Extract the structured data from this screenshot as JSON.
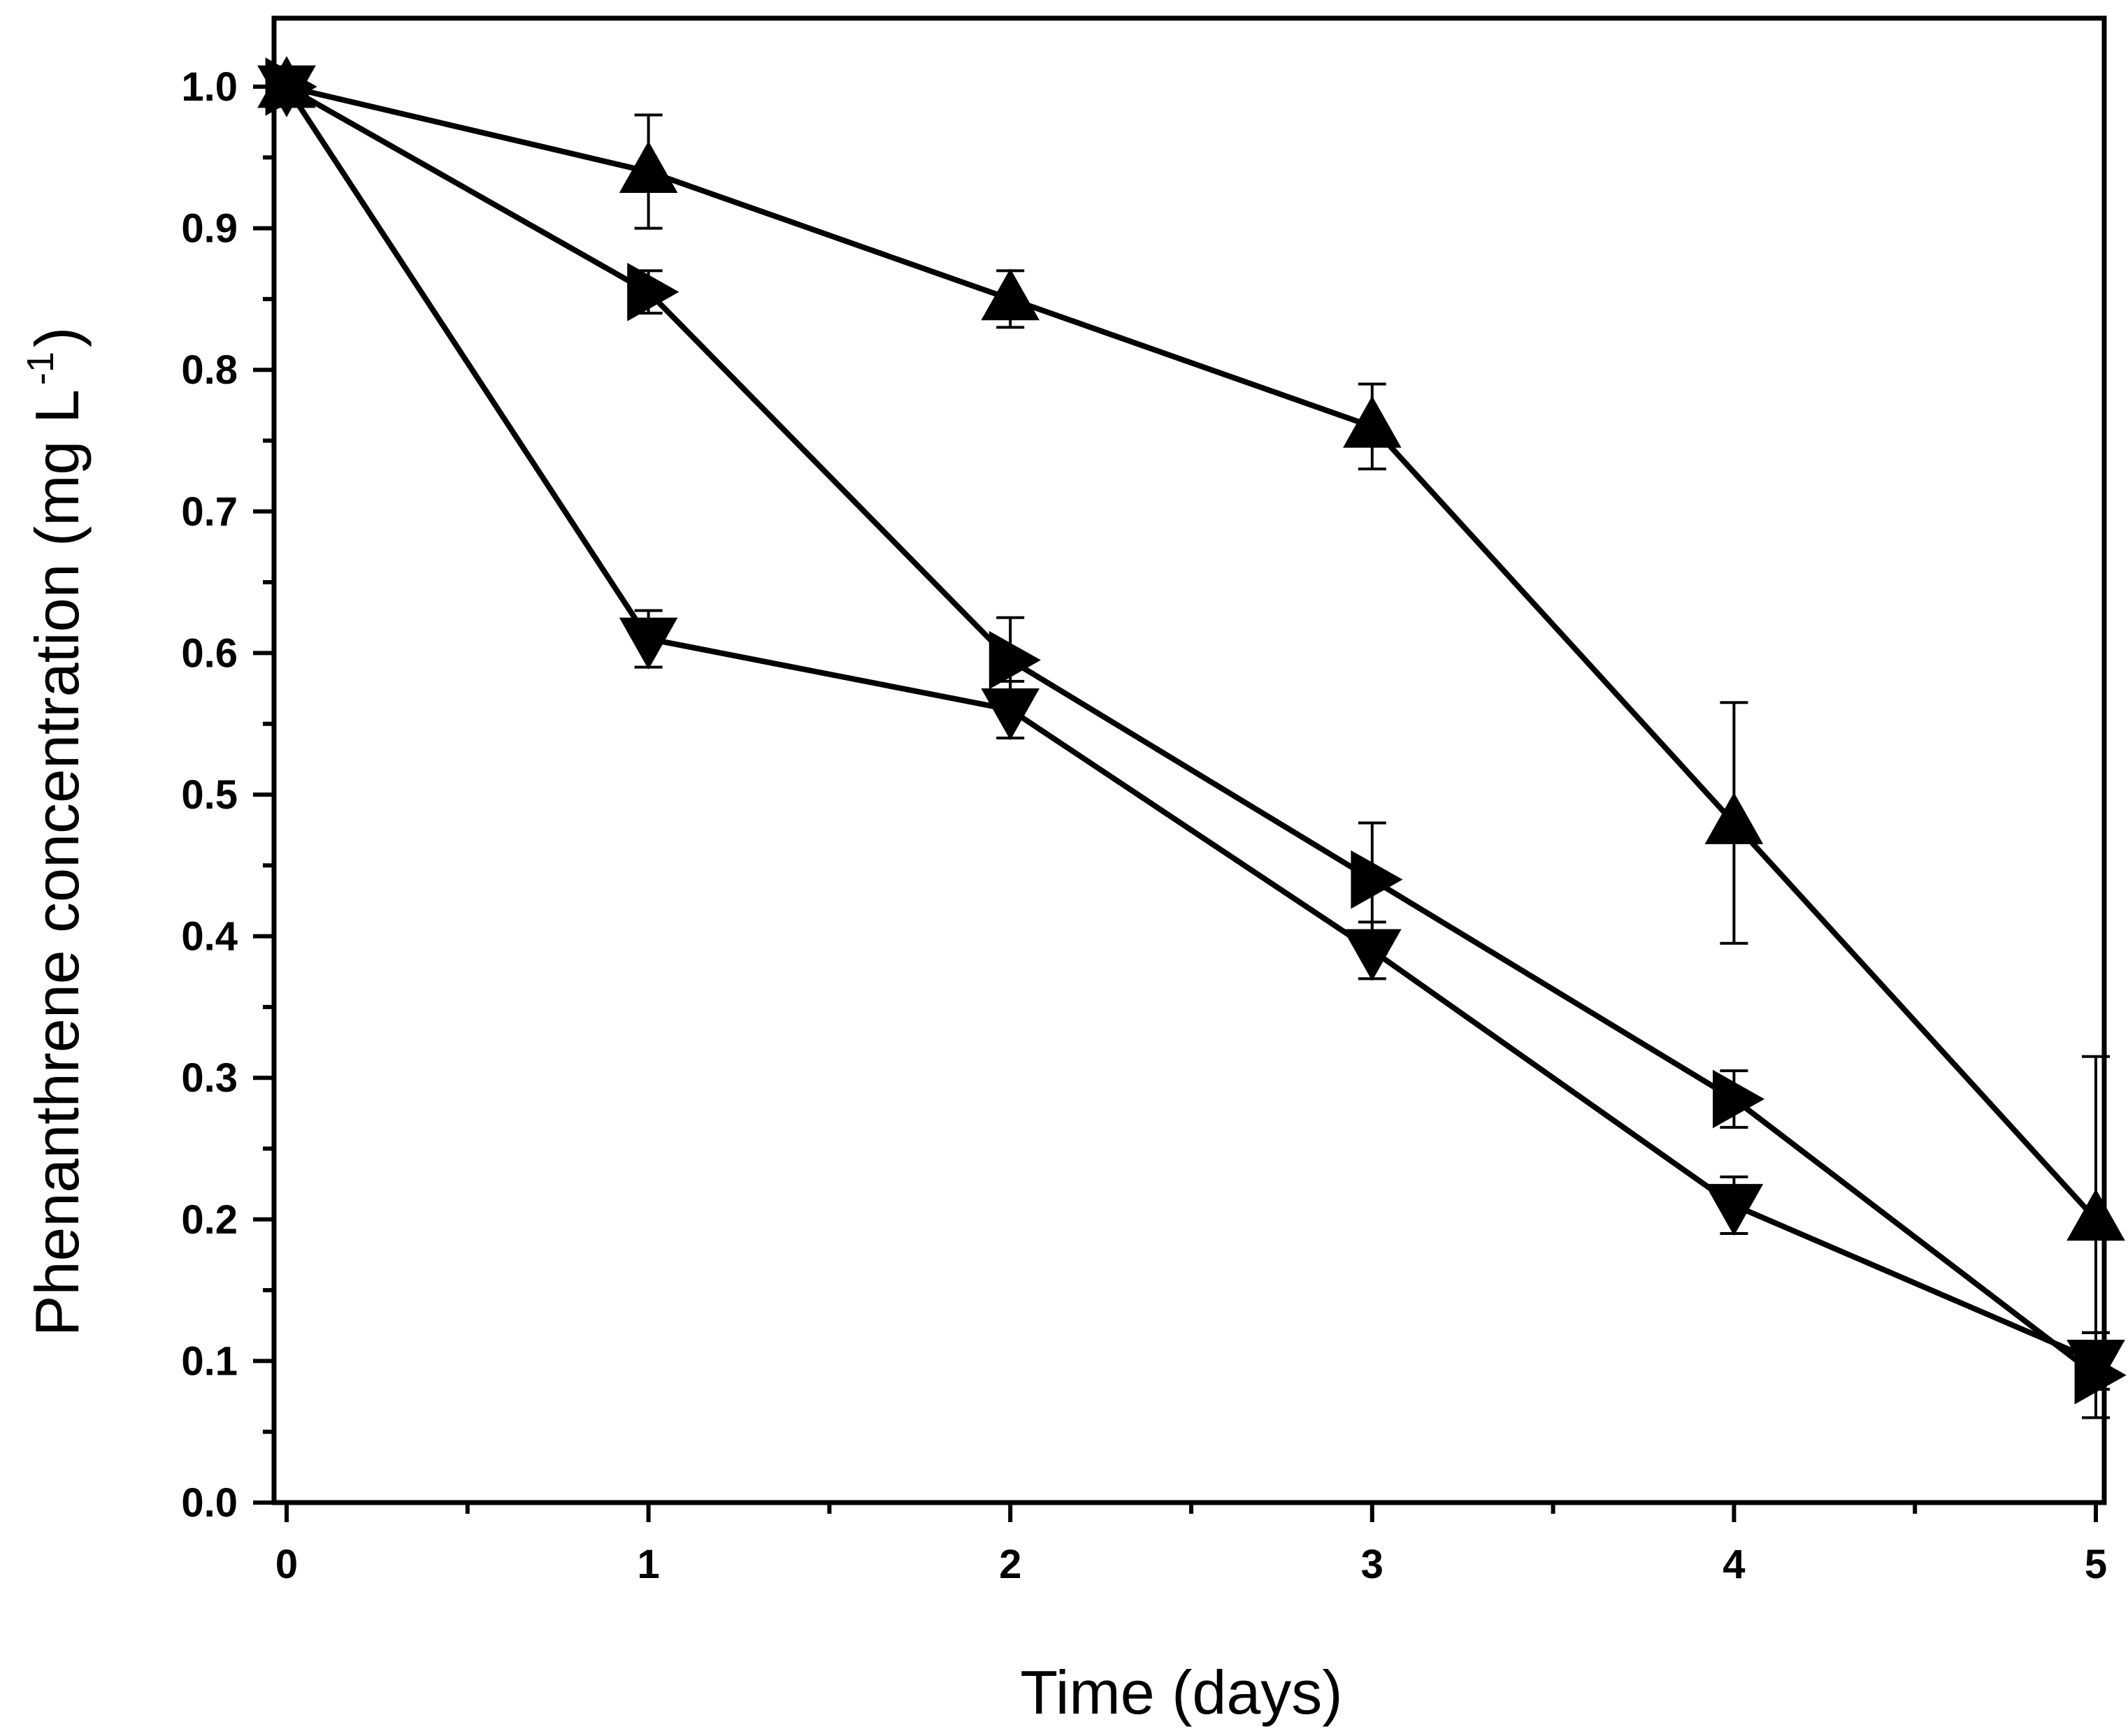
{
  "chart_data": {
    "type": "line",
    "title": "",
    "xlabel": "Time (days)",
    "ylabel": "Phenanthrene concentration (mg L",
    "ylabel_superscript": "-1",
    "ylabel_suffix": ")",
    "xlim": [
      0,
      5
    ],
    "ylim": [
      0,
      1.0
    ],
    "x_ticks": [
      0,
      1,
      2,
      3,
      4,
      5
    ],
    "x_tick_labels": [
      "0",
      "1",
      "2",
      "3",
      "4",
      "5"
    ],
    "y_ticks": [
      0,
      0.1,
      0.2,
      0.3,
      0.4,
      0.5,
      0.6,
      0.7,
      0.8,
      0.9,
      1.0
    ],
    "y_tick_labels": [
      "0.0",
      "0.1",
      "0.2",
      "0.3",
      "0.4",
      "0.5",
      "0.6",
      "0.7",
      "0.8",
      "0.9",
      "1.0"
    ],
    "x": [
      0,
      1,
      2,
      3,
      4,
      5
    ],
    "series": [
      {
        "name": "triangle-up",
        "marker": "triangle-up",
        "values": [
          1.0,
          0.94,
          0.85,
          0.76,
          0.48,
          0.2
        ],
        "errors": [
          0.0,
          0.04,
          0.02,
          0.03,
          0.085,
          0.115
        ]
      },
      {
        "name": "triangle-right",
        "marker": "triangle-right",
        "values": [
          1.0,
          0.855,
          0.595,
          0.44,
          0.285,
          0.09
        ],
        "errors": [
          0.0,
          0.015,
          0.03,
          0.04,
          0.02,
          0.03
        ]
      },
      {
        "name": "triangle-down",
        "marker": "triangle-down",
        "values": [
          1.0,
          0.61,
          0.56,
          0.39,
          0.21,
          0.1
        ],
        "errors": [
          0.0,
          0.02,
          0.02,
          0.02,
          0.02,
          0.02
        ]
      }
    ],
    "colors": {
      "line": "#000000",
      "marker": "#000000",
      "frame": "#000000"
    }
  }
}
